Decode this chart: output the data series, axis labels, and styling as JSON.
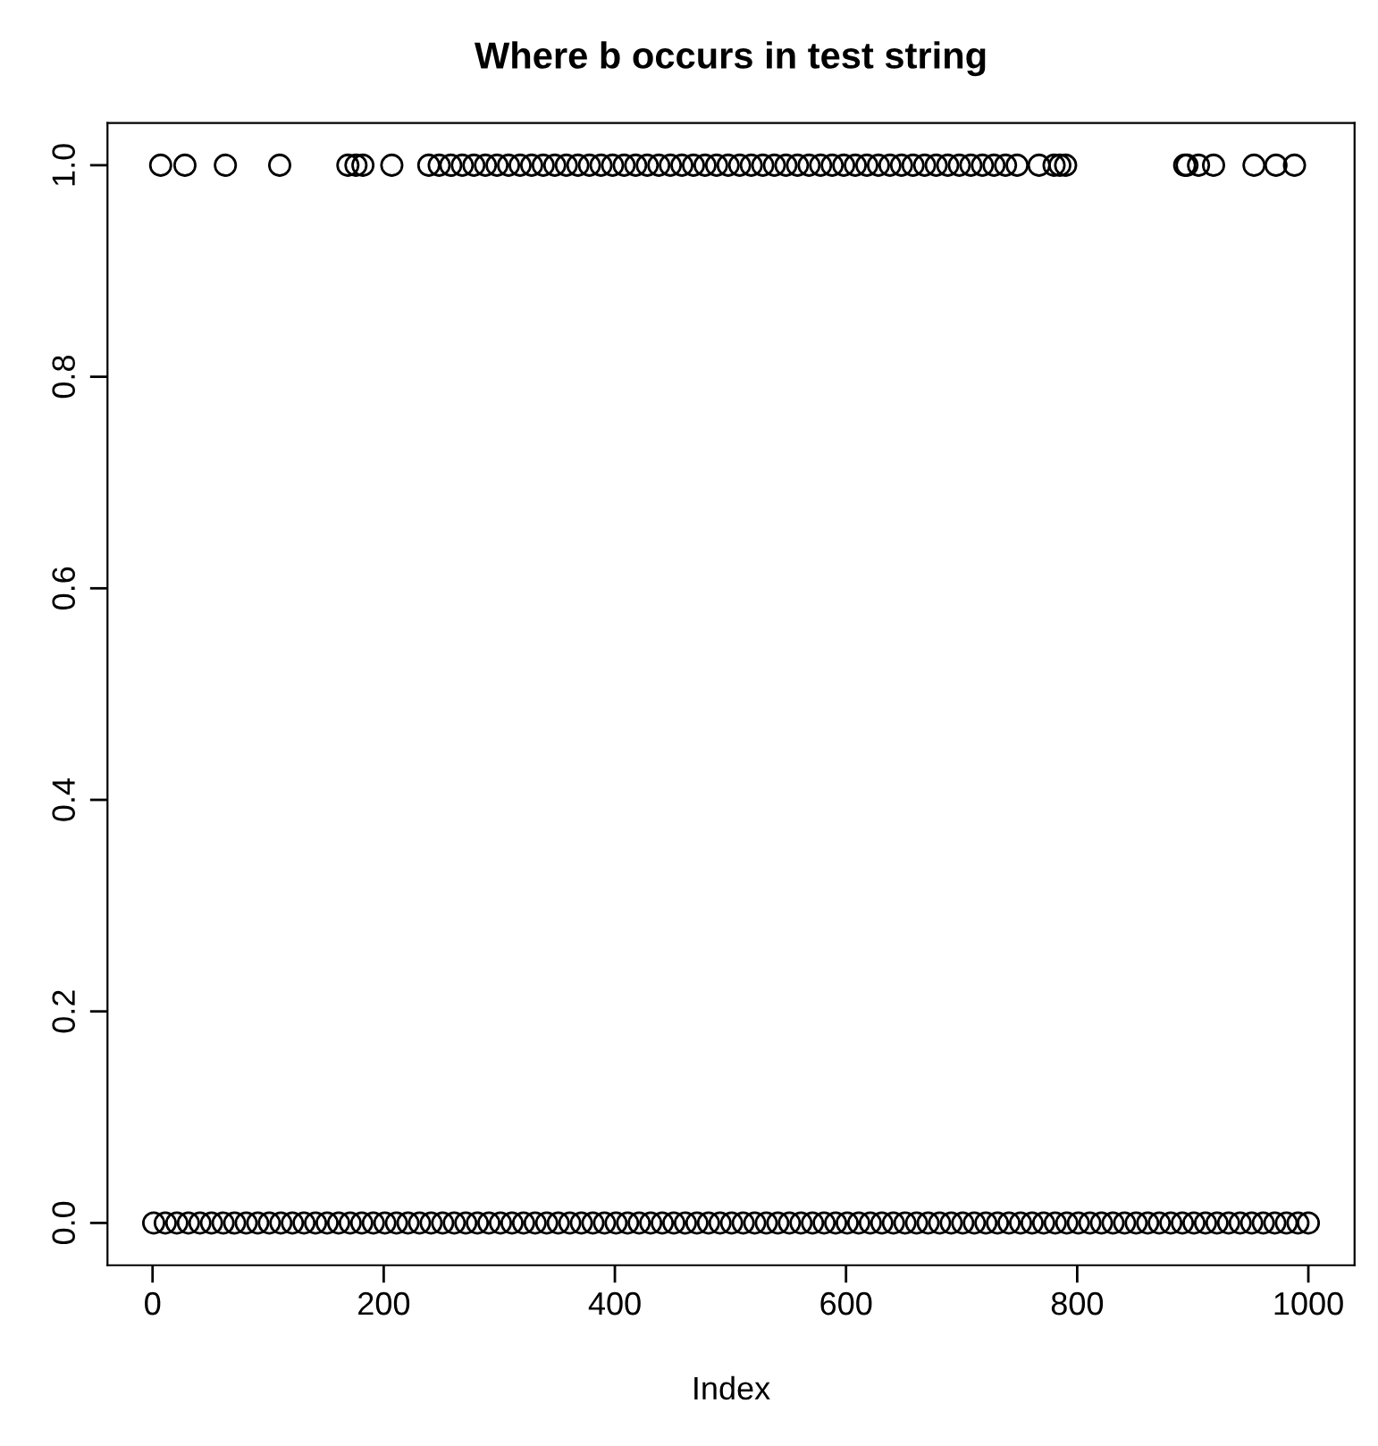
{
  "chart_data": {
    "type": "scatter",
    "title": "Where b occurs in test string",
    "xlabel": "Index",
    "xlim": [
      -39,
      1040
    ],
    "xticks": [
      0,
      200,
      400,
      600,
      800,
      1000
    ],
    "ylim": [
      -0.04,
      1.04
    ],
    "yticks": [
      {
        "value": 0,
        "label": "0.0"
      },
      {
        "value": 0.2,
        "label": "0.2"
      },
      {
        "value": 0.4,
        "label": "0.4"
      },
      {
        "value": 0.6,
        "label": "0.6"
      },
      {
        "value": 0.8,
        "label": "0.8"
      },
      {
        "value": 1,
        "label": "1.0"
      }
    ],
    "grid": false,
    "marker": "circle",
    "series": [
      {
        "color": "#000000",
        "x": [
          1,
          11,
          21,
          31,
          41,
          51,
          61,
          71,
          81,
          91,
          101,
          111,
          121,
          131,
          141,
          151,
          161,
          171,
          181,
          191,
          201,
          211,
          221,
          231,
          241,
          251,
          261,
          271,
          281,
          291,
          301,
          311,
          321,
          331,
          341,
          351,
          361,
          371,
          381,
          391,
          401,
          411,
          421,
          431,
          441,
          451,
          461,
          471,
          481,
          491,
          501,
          511,
          521,
          531,
          541,
          551,
          561,
          571,
          581,
          591,
          601,
          611,
          621,
          631,
          641,
          651,
          661,
          671,
          681,
          691,
          701,
          711,
          721,
          731,
          741,
          751,
          761,
          771,
          781,
          791,
          801,
          811,
          821,
          831,
          841,
          851,
          861,
          871,
          881,
          891,
          901,
          911,
          921,
          931,
          941,
          951,
          961,
          971,
          981,
          991,
          1000,
          7,
          28,
          63,
          110,
          169,
          176,
          182,
          207,
          239,
          248,
          258,
          268,
          278,
          288,
          298,
          308,
          318,
          328,
          338,
          348,
          358,
          368,
          378,
          388,
          398,
          408,
          418,
          428,
          438,
          448,
          458,
          468,
          478,
          488,
          498,
          508,
          518,
          528,
          538,
          548,
          558,
          568,
          578,
          588,
          598,
          608,
          618,
          628,
          638,
          648,
          658,
          668,
          678,
          688,
          698,
          708,
          718,
          728,
          738,
          748,
          767,
          780,
          785,
          790,
          893,
          895,
          905,
          918,
          953,
          972,
          988
        ],
        "values": [
          0,
          0,
          0,
          0,
          0,
          0,
          0,
          0,
          0,
          0,
          0,
          0,
          0,
          0,
          0,
          0,
          0,
          0,
          0,
          0,
          0,
          0,
          0,
          0,
          0,
          0,
          0,
          0,
          0,
          0,
          0,
          0,
          0,
          0,
          0,
          0,
          0,
          0,
          0,
          0,
          0,
          0,
          0,
          0,
          0,
          0,
          0,
          0,
          0,
          0,
          0,
          0,
          0,
          0,
          0,
          0,
          0,
          0,
          0,
          0,
          0,
          0,
          0,
          0,
          0,
          0,
          0,
          0,
          0,
          0,
          0,
          0,
          0,
          0,
          0,
          0,
          0,
          0,
          0,
          0,
          0,
          0,
          0,
          0,
          0,
          0,
          0,
          0,
          0,
          0,
          0,
          0,
          0,
          0,
          0,
          0,
          0,
          0,
          0,
          0,
          0,
          1,
          1,
          1,
          1,
          1,
          1,
          1,
          1,
          1,
          1,
          1,
          1,
          1,
          1,
          1,
          1,
          1,
          1,
          1,
          1,
          1,
          1,
          1,
          1,
          1,
          1,
          1,
          1,
          1,
          1,
          1,
          1,
          1,
          1,
          1,
          1,
          1,
          1,
          1,
          1,
          1,
          1,
          1,
          1,
          1,
          1,
          1,
          1,
          1,
          1,
          1,
          1,
          1,
          1,
          1,
          1,
          1,
          1,
          1,
          1,
          1,
          1,
          1,
          1,
          1,
          1,
          1,
          1,
          1,
          1,
          1
        ]
      }
    ]
  }
}
